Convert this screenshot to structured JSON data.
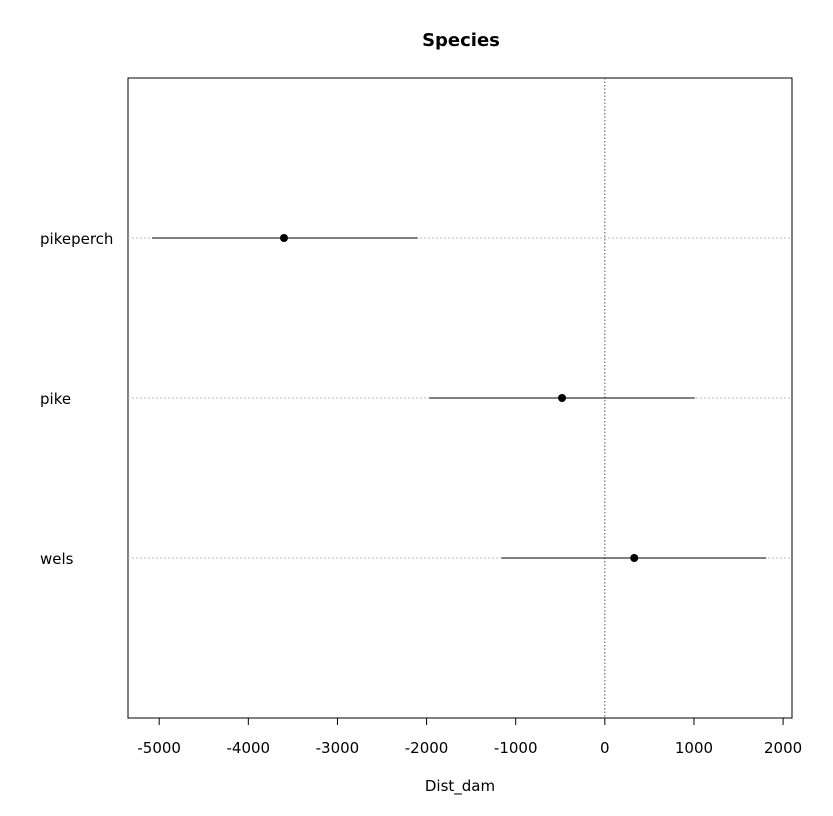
{
  "chart_data": {
    "type": "scatter",
    "subtype": "coefficient-interval",
    "title": "Species",
    "xlabel": "Dist_dam",
    "ylabel": "",
    "xlim": [
      -5350,
      2100
    ],
    "xticks": [
      -5000,
      -4000,
      -3000,
      -2000,
      -1000,
      0,
      1000,
      2000
    ],
    "reference_line": 0,
    "grid": "horizontal dotted at categories",
    "categories": [
      "pikeperch",
      "pike",
      "wels"
    ],
    "points": [
      {
        "category": "pikeperch",
        "estimate": -3600,
        "lower": -5080,
        "upper": -2100
      },
      {
        "category": "pike",
        "estimate": -480,
        "lower": -1970,
        "upper": 1010
      },
      {
        "category": "wels",
        "estimate": 330,
        "lower": -1160,
        "upper": 1810
      }
    ]
  }
}
